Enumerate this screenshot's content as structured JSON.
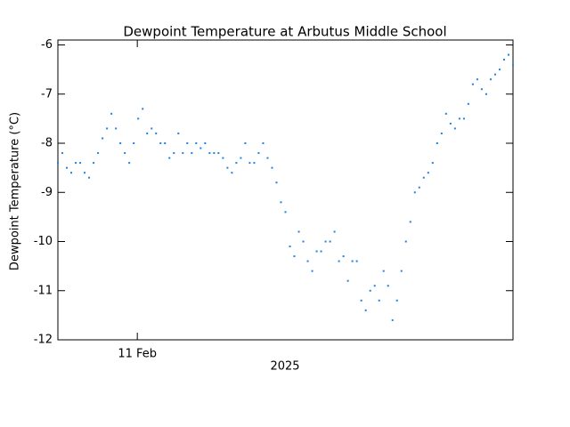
{
  "chart_data": {
    "type": "scatter",
    "title": "Dewpoint Temperature at Arbutus Middle School",
    "y_label": "Dewpoint Temperature (°C)",
    "x_label": "2025",
    "color": "#1e82e6",
    "xlim": [
      0,
      102
    ],
    "xticks": [
      {
        "value": 17.8,
        "label": "11 Feb"
      }
    ],
    "ylim": [
      -12,
      -5.9
    ],
    "yticks": [
      -12,
      -11,
      -10,
      -9,
      -8,
      -7,
      -6
    ],
    "x": [
      0,
      1,
      2,
      3,
      4,
      5,
      6,
      7,
      8,
      9,
      10,
      11,
      12,
      13,
      14,
      15,
      16,
      17,
      18,
      19,
      20,
      21,
      22,
      23,
      24,
      25,
      26,
      27,
      28,
      29,
      30,
      31,
      32,
      33,
      34,
      35,
      36,
      37,
      38,
      39,
      40,
      41,
      42,
      43,
      44,
      45,
      46,
      47,
      48,
      49,
      50,
      51,
      52,
      53,
      54,
      55,
      56,
      57,
      58,
      59,
      60,
      61,
      62,
      63,
      64,
      65,
      66,
      67,
      68,
      69,
      70,
      71,
      72,
      73,
      74,
      75,
      76,
      77,
      78,
      79,
      80,
      81,
      82,
      83,
      84,
      85,
      86,
      87,
      88,
      89,
      90,
      91,
      92,
      93,
      94,
      95,
      96,
      97,
      98,
      99,
      100,
      101,
      102
    ],
    "values": [
      -8.4,
      -8.2,
      -8.5,
      -8.6,
      -8.4,
      -8.4,
      -8.6,
      -8.7,
      -8.4,
      -8.2,
      -7.9,
      -7.7,
      -7.4,
      -7.7,
      -8.0,
      -8.2,
      -8.4,
      -8.0,
      -7.5,
      -7.3,
      -7.8,
      -7.7,
      -7.8,
      -8.0,
      -8.0,
      -8.3,
      -8.2,
      -7.8,
      -8.2,
      -8.0,
      -8.2,
      -8.0,
      -8.1,
      -8.0,
      -8.2,
      -8.2,
      -8.2,
      -8.3,
      -8.5,
      -8.6,
      -8.4,
      -8.3,
      -8.0,
      -8.4,
      -8.4,
      -8.2,
      -8.0,
      -8.3,
      -8.5,
      -8.8,
      -9.2,
      -9.4,
      -10.1,
      -10.3,
      -9.8,
      -10.0,
      -10.4,
      -10.6,
      -10.2,
      -10.2,
      -10.0,
      -10.0,
      -9.8,
      -10.4,
      -10.3,
      -10.8,
      -10.4,
      -10.4,
      -11.2,
      -11.4,
      -11.0,
      -10.9,
      -11.2,
      -10.6,
      -10.9,
      -11.6,
      -11.2,
      -10.6,
      -10.0,
      -9.6,
      -9.0,
      -8.9,
      -8.7,
      -8.6,
      -8.4,
      -8.0,
      -7.8,
      -7.4,
      -7.6,
      -7.7,
      -7.5,
      -7.5,
      -7.2,
      -6.8,
      -6.7,
      -6.9,
      -7.0,
      -6.7,
      -6.6,
      -6.5,
      -6.3,
      -6.2,
      -6.4
    ]
  }
}
